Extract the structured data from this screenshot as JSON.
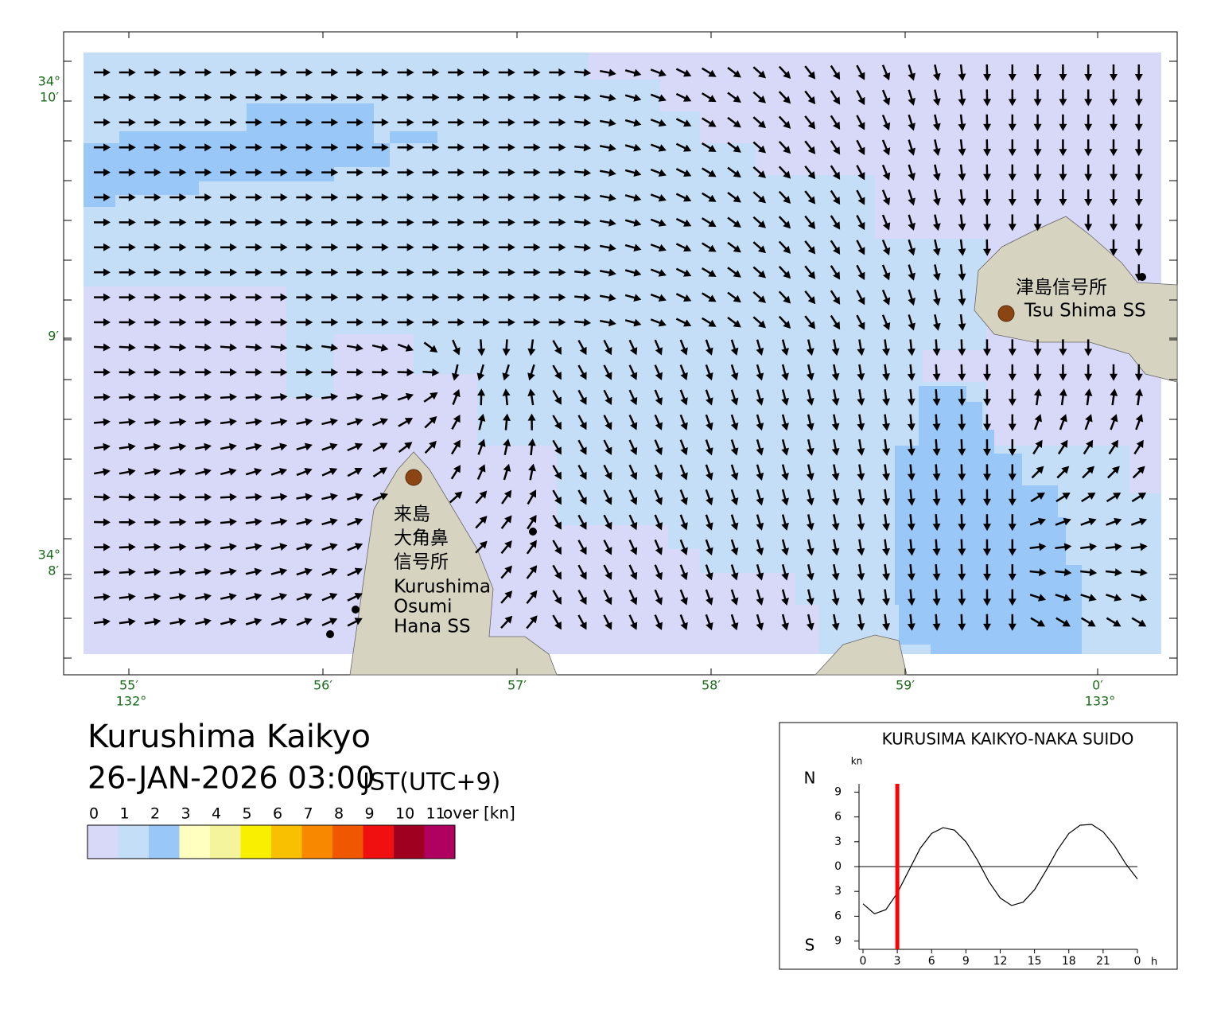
{
  "map": {
    "lon_ticks": [
      {
        "minute": "55′",
        "degree": "132°"
      },
      {
        "minute": "56′"
      },
      {
        "minute": "57′"
      },
      {
        "minute": "58′"
      },
      {
        "minute": "59′"
      },
      {
        "minute": "0′",
        "degree": "133°"
      }
    ],
    "lat_ticks": [
      {
        "minute": "10′",
        "degree": "34°"
      },
      {
        "minute": "9′"
      },
      {
        "minute": "8′",
        "degree": "34°"
      }
    ],
    "places": [
      {
        "lines": [
          "津島信号所",
          "Tsu Shima SS"
        ]
      },
      {
        "lines": [
          "来島",
          "大角鼻",
          "信号所",
          "Kurushima",
          "Osumi",
          "Hana SS"
        ]
      }
    ]
  },
  "title": "Kurushima Kaikyo",
  "datetime": "26-JAN-2026 03:00",
  "timezone": "JST(UTC+9)",
  "legend": {
    "values": [
      0,
      1,
      2,
      3,
      4,
      5,
      6,
      7,
      8,
      9,
      10,
      11
    ],
    "over": "over [kn]",
    "colors": [
      "#d8d8f8",
      "#c4def8",
      "#99c8f8",
      "#ffffc0",
      "#f4f49c",
      "#f8f000",
      "#f8c000",
      "#f88800",
      "#f05800",
      "#f01010",
      "#a00020",
      "#b00060"
    ]
  },
  "chart_data": {
    "type": "line",
    "title": "KURUSIMA KAIKYO-NAKA SUIDO",
    "y_unit": "kn",
    "x_unit": "h",
    "north": "N",
    "south": "S",
    "x": [
      0,
      1,
      2,
      3,
      4,
      5,
      6,
      7,
      8,
      9,
      10,
      11,
      12,
      13,
      14,
      15,
      16,
      17,
      18,
      19,
      20,
      21,
      22,
      23,
      24
    ],
    "series": [
      {
        "color": "#000000",
        "values": [
          -4.5,
          -5.7,
          -5.2,
          -3.2,
          -0.5,
          2.2,
          4.0,
          4.7,
          4.4,
          3.0,
          0.8,
          -1.8,
          -3.8,
          -4.7,
          -4.3,
          -2.8,
          -0.5,
          2.0,
          4.0,
          5.0,
          5.1,
          4.2,
          2.5,
          0.3,
          -1.5
        ]
      }
    ],
    "xlim": [
      0,
      24
    ],
    "ylim": [
      -10,
      10
    ],
    "xticks": [
      0,
      3,
      6,
      9,
      12,
      15,
      18,
      21,
      {
        "value": 24,
        "label": "0"
      }
    ],
    "yticks": [
      {
        "value": 9,
        "label": "9"
      },
      6,
      3,
      0,
      {
        "value": -3,
        "label": "3"
      },
      {
        "value": -6,
        "label": "6"
      },
      {
        "value": -9,
        "label": "9"
      }
    ],
    "current_time": 3,
    "current_color": "#ff0000"
  }
}
